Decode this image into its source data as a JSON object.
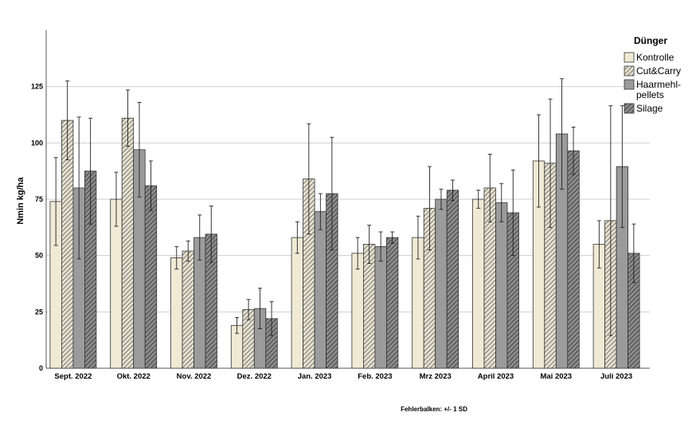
{
  "chart_data": {
    "type": "bar",
    "title": "",
    "xlabel": "",
    "ylabel": "Nmin kg/ha",
    "ylim": [
      0,
      150
    ],
    "yticks": [
      0,
      25,
      50,
      75,
      100,
      125
    ],
    "grid": true,
    "categories": [
      "Sept. 2022",
      "Okt. 2022",
      "Nov. 2022",
      "Dez. 2022",
      "Jan. 2023",
      "Feb. 2023",
      "Mrz 2023",
      "April 2023",
      "Mai 2023",
      "Juli 2023"
    ],
    "legend": {
      "title": "Dünger",
      "placement": "top-right",
      "entries": [
        {
          "label": "Kontrolle",
          "lines": [
            "Kontrolle"
          ]
        },
        {
          "label": "Cut&Carry",
          "lines": [
            "Cut&Carry"
          ]
        },
        {
          "label": "Haarmehl-pellets",
          "lines": [
            "Haarmehl-",
            "pellets"
          ]
        },
        {
          "label": "Silage",
          "lines": [
            "Silage"
          ]
        }
      ]
    },
    "series": [
      {
        "name": "Kontrolle",
        "fill": "#f0ead5",
        "pattern": "none",
        "values": [
          74,
          75,
          49,
          19,
          58,
          51,
          58,
          75,
          92,
          55
        ],
        "sd": [
          19.5,
          12,
          5,
          3.5,
          7,
          7,
          9.5,
          4,
          20.5,
          10.5
        ]
      },
      {
        "name": "Cut&Carry",
        "fill": "#ddd8c5",
        "pattern": "hatch-light",
        "values": [
          110,
          111,
          52,
          26,
          84,
          55,
          71,
          80,
          91,
          65.5
        ],
        "sd": [
          17.5,
          12.5,
          4.5,
          4.5,
          24.5,
          8.5,
          18.5,
          15,
          28.5,
          51
        ]
      },
      {
        "name": "Haarmehl-pellets",
        "fill": "#9b9b9b",
        "pattern": "none",
        "values": [
          80,
          97,
          58,
          26.5,
          69.5,
          54,
          75,
          73.5,
          104,
          89.5
        ],
        "sd": [
          31.5,
          21,
          10,
          9,
          8,
          6.5,
          4.5,
          8.5,
          24.5,
          27
        ],
        "sd_down": [
          31.5,
          21,
          10,
          9,
          8,
          6.5,
          4.5,
          8.5,
          24.5,
          27
        ]
      },
      {
        "name": "Silage",
        "fill": "#7a7a7a",
        "pattern": "hatch-dark",
        "values": [
          87.5,
          81,
          59.5,
          22,
          77.5,
          58,
          79,
          69,
          96.5,
          51
        ],
        "sd": [
          23.5,
          11,
          12.5,
          7.5,
          25,
          2.5,
          4.5,
          19,
          10.5,
          13
        ]
      }
    ],
    "footnote": "Fehlerbalken: +/- 1 SD",
    "colors": {
      "grid": "#cfcfcf",
      "axis": "#555555",
      "bar_stroke": "#333333"
    }
  }
}
